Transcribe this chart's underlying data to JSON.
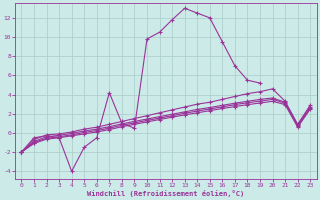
{
  "xlabel": "Windchill (Refroidissement éolien,°C)",
  "xlim": [
    -0.5,
    23.5
  ],
  "ylim": [
    -4.8,
    13.5
  ],
  "yticks": [
    -4,
    -2,
    0,
    2,
    4,
    6,
    8,
    10,
    12
  ],
  "xticks": [
    0,
    1,
    2,
    3,
    4,
    5,
    6,
    7,
    8,
    9,
    10,
    11,
    12,
    13,
    14,
    15,
    16,
    17,
    18,
    19,
    20,
    21,
    22,
    23
  ],
  "background_color": "#cceae7",
  "grid_color": "#b0d0ce",
  "line_color": "#993399",
  "lines": [
    {
      "x": [
        0,
        1,
        2,
        3,
        4,
        5,
        6,
        7,
        8,
        9,
        10,
        11,
        12,
        13,
        14,
        15,
        16,
        17,
        18,
        19
      ],
      "y": [
        -2.0,
        -0.5,
        -0.3,
        -0.5,
        -4.0,
        -1.5,
        -0.5,
        4.2,
        1.0,
        0.5,
        9.8,
        10.5,
        11.8,
        13.0,
        12.5,
        12.0,
        9.5,
        7.0,
        5.5,
        5.2
      ]
    },
    {
      "x": [
        0,
        1,
        2,
        3,
        4,
        5,
        6,
        7,
        8,
        9,
        10,
        11,
        12,
        13,
        14,
        15,
        16,
        17,
        18,
        19,
        20,
        21,
        22,
        23
      ],
      "y": [
        -2.0,
        -0.7,
        -0.2,
        -0.1,
        0.1,
        0.4,
        0.6,
        0.9,
        1.2,
        1.5,
        1.8,
        2.1,
        2.4,
        2.7,
        3.0,
        3.2,
        3.5,
        3.8,
        4.1,
        4.3,
        4.6,
        3.3,
        0.9,
        2.9
      ]
    },
    {
      "x": [
        0,
        1,
        2,
        3,
        4,
        5,
        6,
        7,
        8,
        9,
        10,
        11,
        12,
        13,
        14,
        15,
        16,
        17,
        18,
        19,
        20,
        21,
        22,
        23
      ],
      "y": [
        -2.0,
        -0.9,
        -0.4,
        -0.25,
        -0.05,
        0.2,
        0.4,
        0.65,
        0.95,
        1.2,
        1.45,
        1.7,
        1.95,
        2.2,
        2.45,
        2.65,
        2.88,
        3.1,
        3.3,
        3.5,
        3.65,
        3.2,
        0.8,
        2.75
      ]
    },
    {
      "x": [
        0,
        1,
        2,
        3,
        4,
        5,
        6,
        7,
        8,
        9,
        10,
        11,
        12,
        13,
        14,
        15,
        16,
        17,
        18,
        19,
        20,
        21,
        22,
        23
      ],
      "y": [
        -2.0,
        -1.0,
        -0.55,
        -0.4,
        -0.2,
        0.05,
        0.25,
        0.5,
        0.8,
        1.05,
        1.3,
        1.55,
        1.8,
        2.05,
        2.28,
        2.5,
        2.72,
        2.95,
        3.15,
        3.32,
        3.5,
        3.1,
        0.7,
        2.6
      ]
    },
    {
      "x": [
        0,
        1,
        2,
        3,
        4,
        5,
        6,
        7,
        8,
        9,
        10,
        11,
        12,
        13,
        14,
        15,
        16,
        17,
        18,
        19,
        20,
        21,
        22,
        23
      ],
      "y": [
        -2.0,
        -1.1,
        -0.65,
        -0.5,
        -0.3,
        -0.1,
        0.1,
        0.35,
        0.65,
        0.9,
        1.15,
        1.4,
        1.65,
        1.88,
        2.1,
        2.32,
        2.55,
        2.75,
        2.95,
        3.12,
        3.3,
        2.95,
        0.6,
        2.5
      ]
    }
  ]
}
